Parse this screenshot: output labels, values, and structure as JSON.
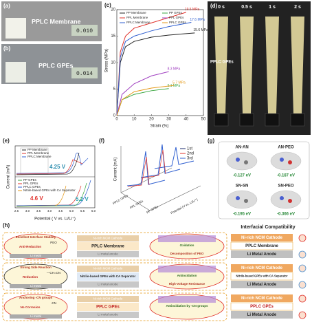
{
  "chart_data": {
    "type": "line",
    "label": "(c)",
    "xlabel": "Strain (%)",
    "ylabel": "Stress (MPa)",
    "xlim": [
      0,
      50
    ],
    "xticks": [
      0,
      10,
      20,
      30,
      40,
      50
    ],
    "ylim": [
      0,
      20
    ],
    "yticks": [
      0,
      5,
      10,
      15,
      20
    ],
    "series": [
      {
        "name": "PP Membrane",
        "color": "#222222",
        "x": [
          0,
          2,
          5,
          10,
          20,
          30,
          45
        ],
        "values": [
          0,
          10,
          13,
          14,
          14.8,
          15.2,
          15.6
        ],
        "annotation": "15.6 MPa"
      },
      {
        "name": "PPL Membrane",
        "color": "#e0302a",
        "x": [
          0,
          2,
          5,
          10,
          20,
          30,
          40
        ],
        "values": [
          0,
          12,
          15,
          16.5,
          17.5,
          18.5,
          19.5
        ],
        "annotation": "19.5 MPa"
      },
      {
        "name": "PPLC Membrane",
        "color": "#2f5fd0",
        "x": [
          0,
          2,
          5,
          10,
          20,
          30,
          43
        ],
        "values": [
          0,
          11,
          14,
          15,
          16,
          16.8,
          17.6
        ],
        "annotation": "17.6 MPa"
      },
      {
        "name": "PP GPEs",
        "color": "#3aa640",
        "x": [
          0,
          3,
          10,
          20,
          30
        ],
        "values": [
          0,
          3,
          4,
          4.7,
          5.1
        ],
        "annotation": "5.1 MPa"
      },
      {
        "name": "PPL GPEs",
        "color": "#a040c0",
        "x": [
          0,
          3,
          10,
          20,
          30
        ],
        "values": [
          0,
          4,
          6,
          7.5,
          8.3
        ],
        "annotation": "8.3 MPa"
      },
      {
        "name": "PPLC GPEs",
        "color": "#e59a1a",
        "x": [
          0,
          3,
          10,
          20,
          33
        ],
        "values": [
          0,
          3,
          4.5,
          5.2,
          5.7
        ],
        "annotation": "5.7 MPa"
      }
    ]
  },
  "figure": {
    "a": {
      "label": "(a)",
      "text": "PPLC Membrane",
      "reading": "0.010"
    },
    "b": {
      "label": "(b)",
      "text": "PPLC GPEs",
      "reading": "0.014"
    },
    "d": {
      "label": "(d)",
      "times": [
        "0 s",
        "0.5 s",
        "1 s",
        "2 s"
      ],
      "text": "PPLC GPEs"
    },
    "e": {
      "label": "(e)",
      "ylabel": "Current (mA)",
      "xlabel": "Potential ( V vs. Li/Li⁺)",
      "xticks": [
        "2.5",
        "3.0",
        "3.5",
        "4.0",
        "4.5",
        "5.0",
        "5.5",
        "6.0"
      ],
      "legend_top": [
        "PP Membrane",
        "PPL Membrane",
        "PPLC Membrane"
      ],
      "v_top": "4.25 V",
      "legend_bottom": [
        "PP GPEs",
        "PPL GPEs",
        "PPLC GPEs",
        "Nitrile-based GPEs with CA Separator"
      ],
      "v_mid": "4.6 V",
      "v_bottom": "5.2 V"
    },
    "f": {
      "label": "(f)",
      "legend": [
        "1st",
        "2nd",
        "3rd"
      ],
      "ylabel": "Current (mA)",
      "xlabel": "Potential (V vs. Li/Li⁺)",
      "categories": [
        "PPLC GPEs",
        "PPL GPEs",
        "PP GPEs"
      ]
    },
    "g": {
      "label": "(g)",
      "items": [
        {
          "name": "AN-AN",
          "energy": "-0.127 eV"
        },
        {
          "name": "AN-PEO",
          "energy": "-0.187 eV"
        },
        {
          "name": "SN-SN",
          "energy": "-0.195 eV"
        },
        {
          "name": "SN-PEO",
          "energy": "-0.366 eV"
        }
      ]
    },
    "h": {
      "label": "(h)",
      "title": "Interfacial Compatibility",
      "rows": [
        {
          "left_title": "Excellent Interface Stability",
          "left_action": "Anti-Reduction",
          "left_extra": "PEO",
          "li": "Li metal",
          "cathode": "Ni-rich NCM Cathode",
          "electrolyte": "PPLC Membrane",
          "anode": "Li metal anode",
          "right_title": "Oxidation",
          "right_note": "Decomposition of PEO",
          "stack": [
            "Ni-rich NCM Cathode",
            "PPLC Membrane",
            "Li Metal Anode"
          ]
        },
        {
          "left_title": "Strong Side Reaction",
          "left_action": "Reduction",
          "left_extra": "—CH=CN",
          "li": "Li metal",
          "cathode": "Ni-rich NCM Cathode",
          "electrolyte": "Nitrile-based GPEs with CA Separator",
          "anode": "Li metal anode",
          "right_title": "Antioxidation",
          "right_note": "High-Voltage Resistance",
          "stack": [
            "Ni-rich NCM Cathode",
            "Nitrile-based GPEs with CA Separator",
            "Li Metal Anode"
          ]
        },
        {
          "left_title": "Anchoring -CN groups",
          "left_action": "No Corrosion",
          "left_extra": "-CN",
          "li": "Li metal",
          "cathode": "Ni-rich NCM Cathode",
          "electrolyte": "PPLC GPEs",
          "anode": "Li metal anode",
          "right_title": "Antioxidation by -CN groups",
          "right_note": "",
          "stack": [
            "Ni-rich NCM Cathode",
            "PPLC GPEs",
            "Li Metal Anode"
          ]
        }
      ]
    }
  }
}
